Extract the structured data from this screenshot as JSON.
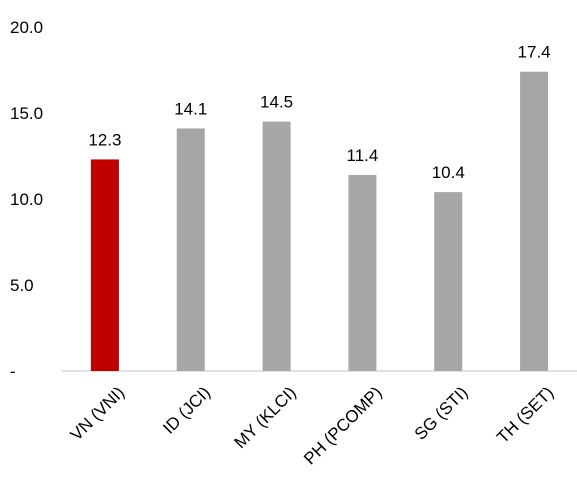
{
  "chart_data": {
    "type": "bar",
    "title": "",
    "xlabel": "",
    "ylabel": "",
    "categories": [
      "VN (VNI)",
      "ID (JCI)",
      "MY (KLCI)",
      "PH (PCOMP)",
      "SG (STI)",
      "TH (SET)"
    ],
    "values": [
      12.3,
      14.1,
      14.5,
      11.4,
      10.4,
      17.4
    ],
    "data_labels": [
      "12.3",
      "14.1",
      "14.5",
      "11.4",
      "10.4",
      "17.4"
    ],
    "ylim": [
      0,
      20
    ],
    "yticks": [
      0,
      5,
      10,
      15,
      20
    ],
    "ytick_labels": [
      "-",
      "5.0",
      "10.0",
      "15.0",
      "20.0"
    ],
    "grid": false,
    "legend": "none",
    "colors": [
      "#c00000",
      "#a6a6a6",
      "#a6a6a6",
      "#a6a6a6",
      "#a6a6a6",
      "#a6a6a6"
    ],
    "axis_color": "#d9d9d9"
  }
}
